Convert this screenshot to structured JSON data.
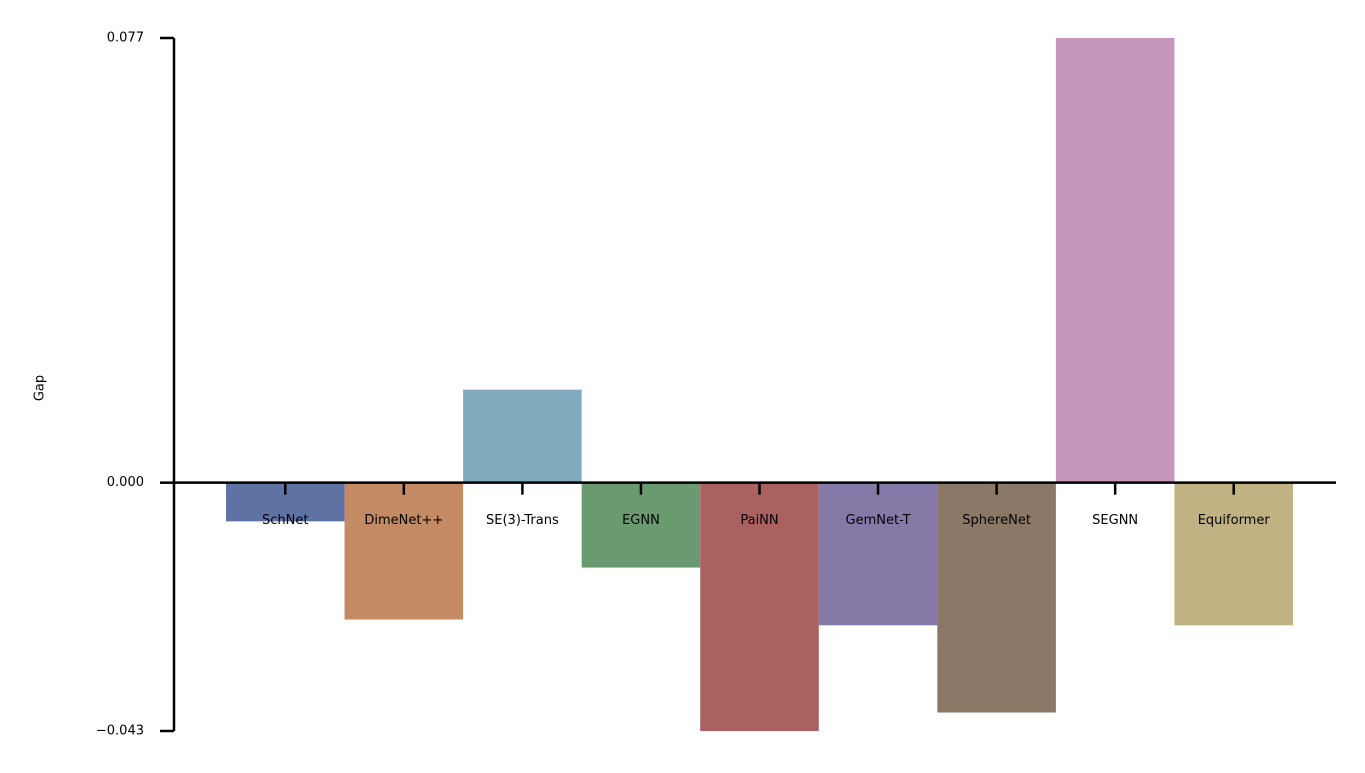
{
  "chart_data": {
    "type": "bar",
    "y_label": "Gap",
    "categories": [
      "SchNet",
      "DimeNet++",
      "SE(3)-Trans",
      "EGNN",
      "PaiNN",
      "GemNet-T",
      "SphereNet",
      "SEGNN",
      "Equiformer"
    ],
    "values": [
      -0.0067,
      -0.0237,
      0.0161,
      -0.0147,
      -0.043,
      -0.0247,
      -0.0398,
      0.077,
      -0.0247
    ],
    "colors": [
      "#5e73a4",
      "#c48a63",
      "#7fabbd",
      "#6a9b70",
      "#aa6160",
      "#8479a7",
      "#8b7866",
      "#c796bd",
      "#c0b283"
    ],
    "ylim": [
      -0.043,
      0.077
    ],
    "yticks": [
      {
        "value": -0.043,
        "label": "−0.043"
      },
      {
        "value": 0,
        "label": "0.000"
      },
      0.077
    ]
  }
}
